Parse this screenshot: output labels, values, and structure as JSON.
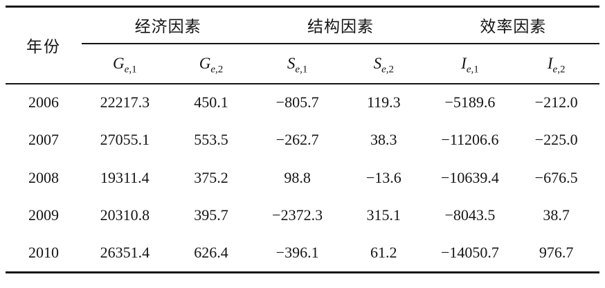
{
  "table": {
    "year_header": "年份",
    "group_headers": [
      "经济因素",
      "结构因素",
      "效率因素"
    ],
    "variable_headers": [
      {
        "base": "G",
        "sub_var": "e",
        "sub_idx": ",1"
      },
      {
        "base": "G",
        "sub_var": "e",
        "sub_idx": ",2"
      },
      {
        "base": "S",
        "sub_var": "e",
        "sub_idx": ",1"
      },
      {
        "base": "S",
        "sub_var": "e",
        "sub_idx": ",2"
      },
      {
        "base": "I",
        "sub_var": "e",
        "sub_idx": ",1"
      },
      {
        "base": "I",
        "sub_var": "e",
        "sub_idx": ",2"
      }
    ],
    "rows": [
      {
        "year": "2006",
        "values": [
          "22217.3",
          "450.1",
          "−805.7",
          "119.3",
          "−5189.6",
          "−212.0"
        ]
      },
      {
        "year": "2007",
        "values": [
          "27055.1",
          "553.5",
          "−262.7",
          "38.3",
          "−11206.6",
          "−225.0"
        ]
      },
      {
        "year": "2008",
        "values": [
          "19311.4",
          "375.2",
          "98.8",
          "−13.6",
          "−10639.4",
          "−676.5"
        ]
      },
      {
        "year": "2009",
        "values": [
          "20310.8",
          "395.7",
          "−2372.3",
          "315.1",
          "−8043.5",
          "38.7"
        ]
      },
      {
        "year": "2010",
        "values": [
          "26351.4",
          "626.4",
          "−396.1",
          "61.2",
          "−14050.7",
          "976.7"
        ]
      }
    ]
  },
  "chart_data": {
    "type": "table",
    "title": "",
    "columns": [
      "年份",
      "G e,1",
      "G e,2",
      "S e,1",
      "S e,2",
      "I e,1",
      "I e,2"
    ],
    "column_groups": [
      {
        "label": "经济因素",
        "columns": [
          "G e,1",
          "G e,2"
        ]
      },
      {
        "label": "结构因素",
        "columns": [
          "S e,1",
          "S e,2"
        ]
      },
      {
        "label": "效率因素",
        "columns": [
          "I e,1",
          "I e,2"
        ]
      }
    ],
    "rows": [
      [
        2006,
        22217.3,
        450.1,
        -805.7,
        119.3,
        -5189.6,
        -212.0
      ],
      [
        2007,
        27055.1,
        553.5,
        -262.7,
        38.3,
        -11206.6,
        -225.0
      ],
      [
        2008,
        19311.4,
        375.2,
        98.8,
        -13.6,
        -10639.4,
        -676.5
      ],
      [
        2009,
        20310.8,
        395.7,
        -2372.3,
        315.1,
        -8043.5,
        38.7
      ],
      [
        2010,
        26351.4,
        626.4,
        -396.1,
        61.2,
        -14050.7,
        976.7
      ]
    ]
  },
  "colors": {
    "text": "#141414",
    "rule": "#141414",
    "background": "#ffffff"
  }
}
